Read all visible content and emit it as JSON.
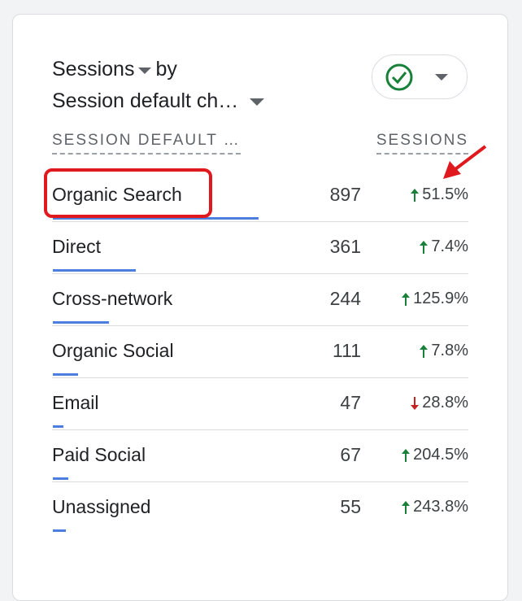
{
  "header": {
    "metric": "Sessions",
    "by": "by",
    "dimension": "Session default ch…"
  },
  "table": {
    "columns": [
      "SESSION DEFAULT …",
      "SESSIONS"
    ],
    "rows": [
      {
        "channel": "Organic Search",
        "sessions": 897,
        "change": "51.5%",
        "direction": "up"
      },
      {
        "channel": "Direct",
        "sessions": 361,
        "change": "7.4%",
        "direction": "up"
      },
      {
        "channel": "Cross-network",
        "sessions": 244,
        "change": "125.9%",
        "direction": "up"
      },
      {
        "channel": "Organic Social",
        "sessions": 111,
        "change": "7.8%",
        "direction": "up"
      },
      {
        "channel": "Email",
        "sessions": 47,
        "change": "28.8%",
        "direction": "down"
      },
      {
        "channel": "Paid Social",
        "sessions": 67,
        "change": "204.5%",
        "direction": "up"
      },
      {
        "channel": "Unassigned",
        "sessions": 55,
        "change": "243.8%",
        "direction": "up"
      }
    ]
  }
}
